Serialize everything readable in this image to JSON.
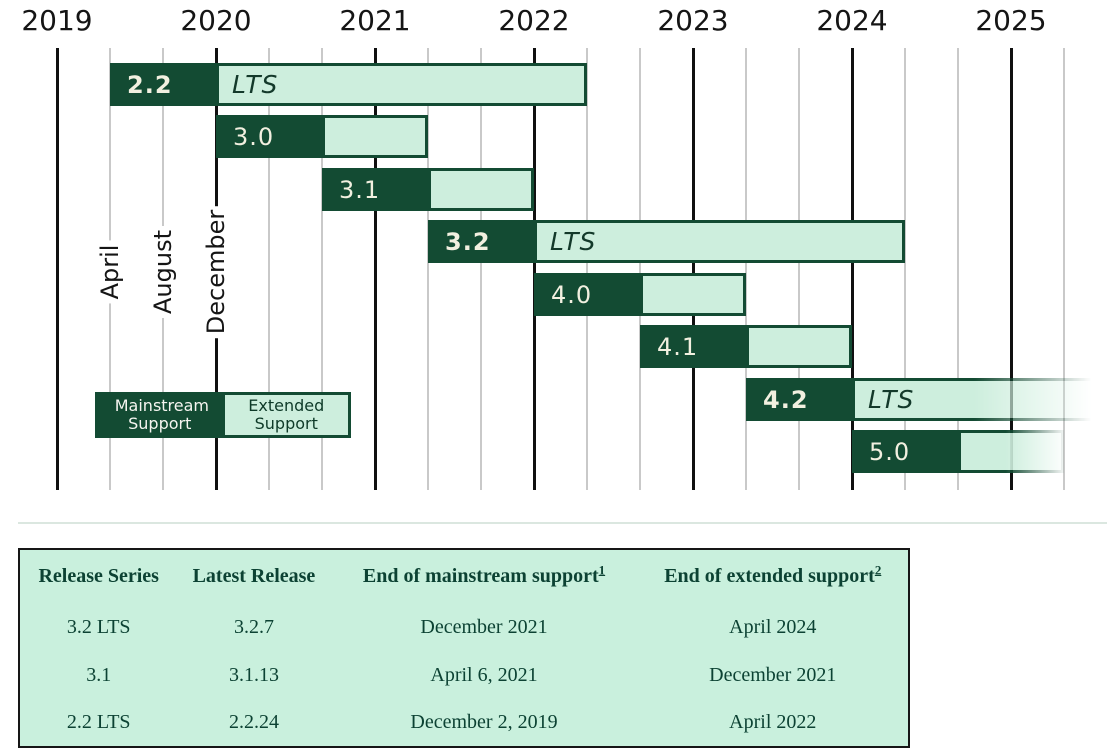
{
  "chart_data": {
    "type": "gantt",
    "x_axis": {
      "years": [
        "2019",
        "2020",
        "2021",
        "2022",
        "2023",
        "2024",
        "2025"
      ],
      "month_tick_labels": [
        "April",
        "August",
        "December"
      ],
      "interval_months": 4,
      "grid": "vertical lines every 4 months; thick black line at each year label, thin gray at April/August"
    },
    "lts_label": "LTS",
    "releases": [
      {
        "version": "2.2",
        "lts": true,
        "mainstream_start": "2019-04",
        "mainstream_end": "2019-12",
        "extended_end": "2022-04",
        "fade_right": false
      },
      {
        "version": "3.0",
        "lts": false,
        "mainstream_start": "2019-12",
        "mainstream_end": "2020-08",
        "extended_end": "2021-04",
        "fade_right": false
      },
      {
        "version": "3.1",
        "lts": false,
        "mainstream_start": "2020-08",
        "mainstream_end": "2021-04",
        "extended_end": "2021-12",
        "fade_right": false
      },
      {
        "version": "3.2",
        "lts": true,
        "mainstream_start": "2021-04",
        "mainstream_end": "2021-12",
        "extended_end": "2024-04",
        "fade_right": false
      },
      {
        "version": "4.0",
        "lts": false,
        "mainstream_start": "2021-12",
        "mainstream_end": "2022-08",
        "extended_end": "2023-04",
        "fade_right": false
      },
      {
        "version": "4.1",
        "lts": false,
        "mainstream_start": "2022-08",
        "mainstream_end": "2023-04",
        "extended_end": "2023-12",
        "fade_right": false
      },
      {
        "version": "4.2",
        "lts": true,
        "mainstream_start": "2023-04",
        "mainstream_end": "2023-12",
        "extended_end": null,
        "fade_right": true
      },
      {
        "version": "5.0",
        "lts": false,
        "mainstream_start": "2023-12",
        "mainstream_end": "2024-08",
        "extended_end": "2025-04",
        "fade_right": true
      }
    ],
    "legend": {
      "mainstream_label": "Mainstream Support",
      "extended_label": "Extended Support"
    },
    "colors": {
      "dark_green": "#134b33",
      "light_green": "#cdeedd",
      "bar_version_text": "#f2f0e0",
      "grid_minor": "#c9c9c9",
      "grid_major": "#101010",
      "table_background": "#c9f0dd",
      "table_text": "#0c4233"
    }
  },
  "table": {
    "columns": [
      {
        "label": "Release Series"
      },
      {
        "label": "Latest Release"
      },
      {
        "label": "End of mainstream support",
        "sup": "1"
      },
      {
        "label": "End of extended support",
        "sup": "2"
      }
    ],
    "rows": [
      [
        "3.2 LTS",
        "3.2.7",
        "December 2021",
        "April 2024"
      ],
      [
        "3.1",
        "3.1.13",
        "April 6, 2021",
        "December 2021"
      ],
      [
        "2.2 LTS",
        "2.2.24",
        "December 2, 2019",
        "April 2022"
      ]
    ]
  }
}
